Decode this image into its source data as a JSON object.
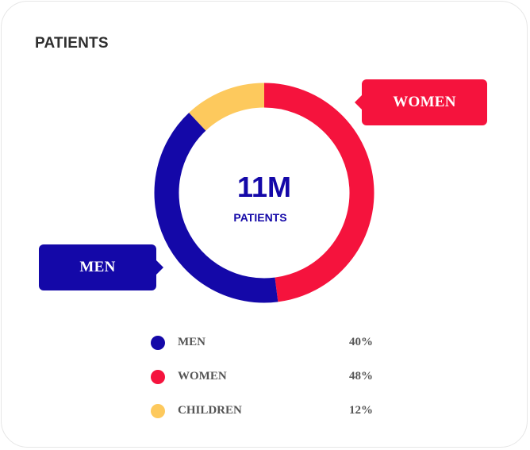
{
  "card": {
    "title": "PATIENTS"
  },
  "center": {
    "value": "11M",
    "label": "PATIENTS"
  },
  "callouts": {
    "women": "WOMEN",
    "men": "MEN"
  },
  "colors": {
    "men": "#1408a8",
    "women": "#f5133d",
    "children": "#fdc95d",
    "title": "#2f2f2f",
    "legend_text": "#555555"
  },
  "legend": [
    {
      "label": "MEN",
      "value": "40%"
    },
    {
      "label": "WOMEN",
      "value": "48%"
    },
    {
      "label": "CHILDREN",
      "value": "12%"
    }
  ],
  "chart_data": {
    "type": "pie",
    "title": "PATIENTS",
    "total_label": "11M",
    "categories": [
      "MEN",
      "WOMEN",
      "CHILDREN"
    ],
    "values": [
      40,
      48,
      12
    ],
    "unit": "%",
    "donut": true
  }
}
